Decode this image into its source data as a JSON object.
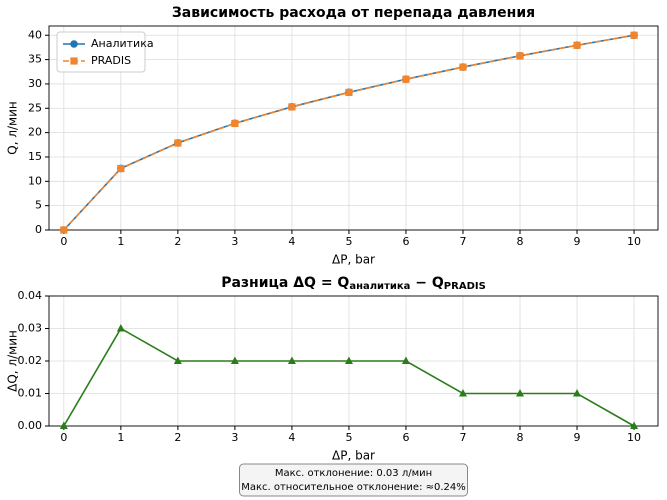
{
  "chart_data": [
    {
      "type": "line",
      "title": "Зависимость расхода от перепада давления",
      "x_label": "ΔP, bar",
      "y_label": "Q, л/мин",
      "x": [
        0,
        1,
        2,
        3,
        4,
        5,
        6,
        7,
        8,
        9,
        10
      ],
      "series": [
        {
          "name": "Аналитика",
          "color": "#1f77b4",
          "marker": "circle",
          "linestyle": "solid",
          "values": [
            0,
            12.65,
            17.89,
            21.91,
            25.3,
            28.28,
            30.98,
            33.47,
            35.78,
            37.95,
            40.0
          ]
        },
        {
          "name": "PRADIS",
          "color": "#f0852d",
          "marker": "square",
          "linestyle": "dashed",
          "values": [
            0,
            12.62,
            17.87,
            21.89,
            25.28,
            28.26,
            30.96,
            33.46,
            35.77,
            37.94,
            40.0
          ]
        }
      ],
      "xlim": [
        -0.26,
        10.42
      ],
      "xticks": [
        0,
        1,
        2,
        3,
        4,
        5,
        6,
        7,
        8,
        9,
        10
      ],
      "ylim": [
        0,
        41.9
      ],
      "yticks": [
        0,
        5,
        10,
        15,
        20,
        25,
        30,
        35,
        40
      ],
      "grid": true,
      "legend": "upper left"
    },
    {
      "type": "line",
      "title_parts": [
        "Разница ΔQ = Q",
        "аналитика",
        " − Q",
        "PRADIS"
      ],
      "x_label": "ΔP, bar",
      "y_label": "ΔQ, л/мин",
      "x": [
        0,
        1,
        2,
        3,
        4,
        5,
        6,
        7,
        8,
        9,
        10
      ],
      "series": [
        {
          "color": "#2a7d1a",
          "marker": "triangle",
          "linestyle": "solid",
          "values": [
            0,
            0.03,
            0.02,
            0.02,
            0.02,
            0.02,
            0.02,
            0.01,
            0.01,
            0.01,
            0
          ]
        }
      ],
      "xlim": [
        -0.26,
        10.42
      ],
      "xticks": [
        0,
        1,
        2,
        3,
        4,
        5,
        6,
        7,
        8,
        9,
        10
      ],
      "ylim": [
        0,
        0.04
      ],
      "yticks": [
        {
          "value": 0,
          "label": "0.00"
        },
        {
          "value": 0.01,
          "label": "0.01"
        },
        {
          "value": 0.02,
          "label": "0.02"
        },
        {
          "value": 0.03,
          "label": "0.03"
        },
        {
          "value": 0.04,
          "label": "0.04"
        }
      ],
      "grid": true,
      "annotation": [
        "Макс. отклонение: 0.03 л/мин",
        "Макс. относительное отклонение: ≈0.24%"
      ]
    }
  ]
}
